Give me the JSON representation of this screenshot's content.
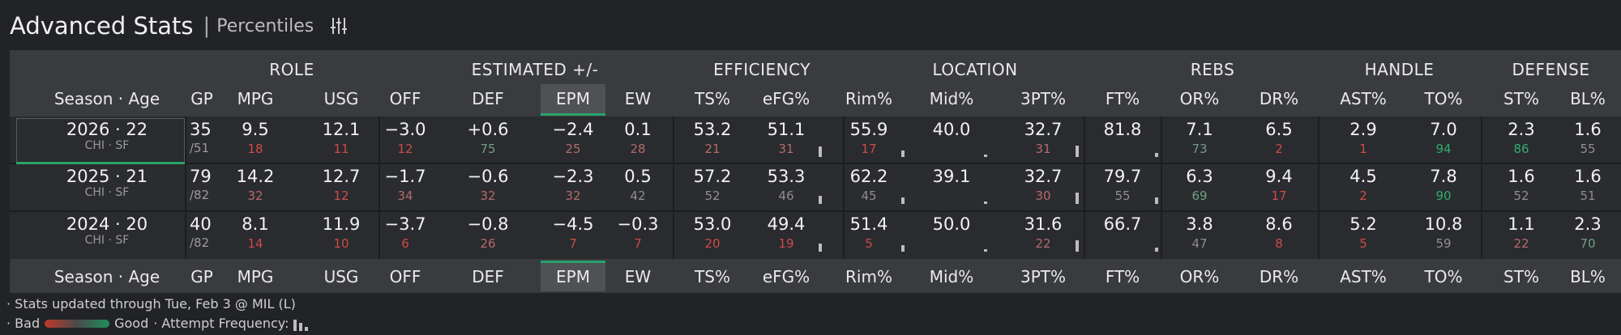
{
  "header": {
    "title": "Advanced Stats",
    "separator": "|",
    "subtitle": "Percentiles",
    "settings_icon": "sliders-icon"
  },
  "groups": [
    "ROLE",
    "ESTIMATED +/-",
    "EFFICIENCY",
    "LOCATION",
    "REBS",
    "HANDLE",
    "DEFENSE"
  ],
  "columns": [
    "Season · Age",
    "GP",
    "MPG",
    "USG",
    "OFF",
    "DEF",
    "EPM",
    "EW",
    "TS%",
    "eFG%",
    "Rim%",
    "Mid%",
    "3PT%",
    "FT%",
    "OR%",
    "DR%",
    "AST%",
    "TO%",
    "ST%",
    "BL%"
  ],
  "highlighted_column": "EPM",
  "colors": {
    "good": "#2fae6f",
    "bad": "#d04a4a",
    "neutral": "#8e8e8e",
    "accent": "#27a36a"
  },
  "rows": [
    {
      "season": "2026 · 22",
      "team": "CHI · SF",
      "gp": "35",
      "gp_total": "/51",
      "selected": true,
      "cells": [
        {
          "v": "9.5",
          "p": "18"
        },
        {
          "v": "12.1",
          "p": "11"
        },
        {
          "v": "−3.0",
          "p": "12"
        },
        {
          "v": "+0.6",
          "p": "75"
        },
        {
          "v": "−2.4",
          "p": "25"
        },
        {
          "v": "0.1",
          "p": "28"
        },
        {
          "v": "53.2",
          "p": "21"
        },
        {
          "v": "51.1",
          "p": "31"
        },
        {
          "v": "55.9",
          "p": "17"
        },
        {
          "v": "40.0",
          "p": ""
        },
        {
          "v": "32.7",
          "p": "31"
        },
        {
          "v": "81.8",
          "p": ""
        },
        {
          "v": "7.1",
          "p": "73"
        },
        {
          "v": "6.5",
          "p": "2"
        },
        {
          "v": "2.9",
          "p": "1"
        },
        {
          "v": "7.0",
          "p": "94"
        },
        {
          "v": "2.3",
          "p": "86"
        },
        {
          "v": "1.6",
          "p": "55"
        }
      ]
    },
    {
      "season": "2025 · 21",
      "team": "CHI · SF",
      "gp": "79",
      "gp_total": "/82",
      "selected": false,
      "cells": [
        {
          "v": "14.2",
          "p": "32"
        },
        {
          "v": "12.7",
          "p": "12"
        },
        {
          "v": "−1.7",
          "p": "34"
        },
        {
          "v": "−0.6",
          "p": "32"
        },
        {
          "v": "−2.3",
          "p": "32"
        },
        {
          "v": "0.5",
          "p": "42"
        },
        {
          "v": "57.2",
          "p": "52"
        },
        {
          "v": "53.3",
          "p": "46"
        },
        {
          "v": "62.2",
          "p": "45"
        },
        {
          "v": "39.1",
          "p": ""
        },
        {
          "v": "32.7",
          "p": "30"
        },
        {
          "v": "79.7",
          "p": "55"
        },
        {
          "v": "6.3",
          "p": "69"
        },
        {
          "v": "9.4",
          "p": "17"
        },
        {
          "v": "4.5",
          "p": "2"
        },
        {
          "v": "7.8",
          "p": "90"
        },
        {
          "v": "1.6",
          "p": "52"
        },
        {
          "v": "1.6",
          "p": "51"
        }
      ]
    },
    {
      "season": "2024 · 20",
      "team": "CHI · SF",
      "gp": "40",
      "gp_total": "/82",
      "selected": false,
      "cells": [
        {
          "v": "8.1",
          "p": "14"
        },
        {
          "v": "11.9",
          "p": "10"
        },
        {
          "v": "−3.7",
          "p": "6"
        },
        {
          "v": "−0.8",
          "p": "26"
        },
        {
          "v": "−4.5",
          "p": "7"
        },
        {
          "v": "−0.3",
          "p": "7"
        },
        {
          "v": "53.0",
          "p": "20"
        },
        {
          "v": "49.4",
          "p": "19"
        },
        {
          "v": "51.4",
          "p": "5"
        },
        {
          "v": "50.0",
          "p": ""
        },
        {
          "v": "31.6",
          "p": "22"
        },
        {
          "v": "66.7",
          "p": ""
        },
        {
          "v": "3.8",
          "p": "47"
        },
        {
          "v": "8.6",
          "p": "8"
        },
        {
          "v": "5.2",
          "p": "5"
        },
        {
          "v": "10.8",
          "p": "59"
        },
        {
          "v": "1.1",
          "p": "22"
        },
        {
          "v": "2.3",
          "p": "70"
        }
      ]
    }
  ],
  "attempt_frequency": [
    {
      "col": "eFG%",
      "rows": [
        0.8,
        0.6,
        0.6
      ]
    },
    {
      "col": "Rim%",
      "rows": [
        0.5,
        0.5,
        0.5
      ]
    },
    {
      "col": "Mid%",
      "rows": [
        0.1,
        0.1,
        0.1
      ]
    },
    {
      "col": "3PT%",
      "rows": [
        0.9,
        0.9,
        0.9
      ]
    },
    {
      "col": "FT%",
      "rows": [
        0.3,
        0.5,
        0.3
      ]
    }
  ],
  "footer": {
    "updated": "· Stats updated through Tue, Feb 3 @ MIL (L)",
    "legend_prefix": "· Bad",
    "legend_good": "Good",
    "legend_suffix": "· Attempt Frequency:"
  }
}
